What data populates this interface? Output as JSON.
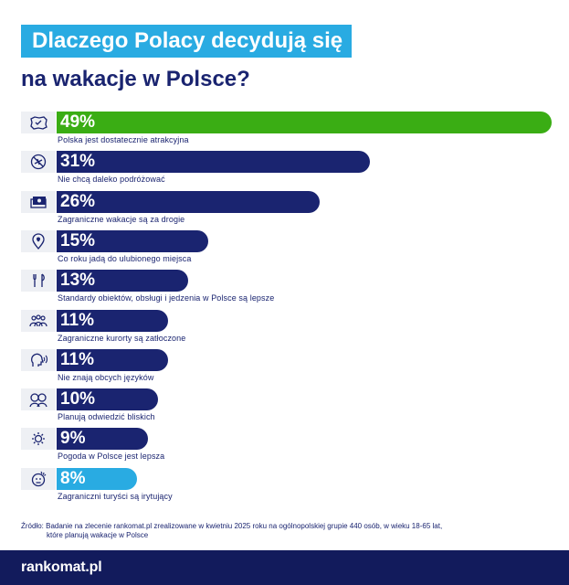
{
  "title": {
    "line1": "Dlaczego Polacy decydują się",
    "line2": "na wakacje w Polsce?"
  },
  "colors": {
    "title_bg": "#29abe2",
    "navy": "#1a2470",
    "green": "#3aad14",
    "light_blue": "#29abe2",
    "footer_bg": "#121b5c"
  },
  "chart_data": {
    "type": "bar",
    "orientation": "horizontal",
    "unit": "%",
    "xlim": [
      0,
      49
    ],
    "categories": [
      "Polska jest dostatecznie atrakcyjna",
      "Nie chcą daleko podróżować",
      "Zagraniczne wakacje są za drogie",
      "Co roku jadą do ulubionego miejsca",
      "Standardy obiektów, obsługi i jedzenia w Polsce są lepsze",
      "Zagraniczne kurorty są zatłoczone",
      "Nie znają obcych języków",
      "Planują odwiedzić bliskich",
      "Pogoda w Polsce jest lepsza",
      "Zagraniczni turyści są irytujący"
    ],
    "values": [
      49,
      31,
      26,
      15,
      13,
      11,
      11,
      10,
      9,
      8
    ],
    "value_labels": [
      "49%",
      "31%",
      "26%",
      "15%",
      "13%",
      "11%",
      "11%",
      "10%",
      "9%",
      "8%"
    ],
    "bar_colors": [
      "#3aad14",
      "#1a2470",
      "#1a2470",
      "#1a2470",
      "#1a2470",
      "#1a2470",
      "#1a2470",
      "#1a2470",
      "#1a2470",
      "#29abe2"
    ],
    "icons": [
      "poland-map-icon",
      "no-plane-icon",
      "money-icon",
      "location-pin-icon",
      "fork-knife-icon",
      "crowd-icon",
      "speaking-head-icon",
      "family-icon",
      "sun-icon",
      "annoyed-face-icon"
    ],
    "grid": false,
    "legend": "none"
  },
  "source": {
    "line1": "Źródło:  Badanie na zlecenie rankomat.pl zrealizowane w kwietniu 2025 roku na ogólnopolskiej grupie 440 osób, w wieku 18-65 lat,",
    "line2": "które planują wakacje w Polsce"
  },
  "footer": {
    "logo": "rankomat.pl"
  }
}
